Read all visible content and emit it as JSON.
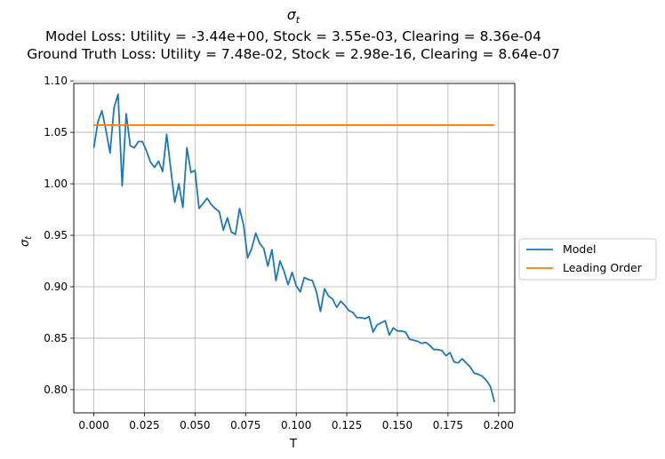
{
  "chart_data": {
    "type": "line",
    "title_symbol": "σ",
    "title_subscript": "t",
    "title_line2": "Model Loss: Utility = -3.44e+00, Stock = 3.55e-03, Clearing = 8.36e-04",
    "title_line3": "Ground Truth Loss: Utility = 7.48e-02, Stock = 2.98e-16, Clearing = 8.64e-07",
    "xlabel": "T",
    "ylabel_symbol": "σ",
    "ylabel_subscript": "t",
    "xlim": [
      -0.0099,
      0.208
    ],
    "ylim": [
      0.7775,
      1.0975
    ],
    "xticks": [
      0.0,
      0.025,
      0.05,
      0.075,
      0.1,
      0.125,
      0.15,
      0.175,
      0.2
    ],
    "xtick_labels": [
      "0.000",
      "0.025",
      "0.050",
      "0.075",
      "0.100",
      "0.125",
      "0.150",
      "0.175",
      "0.200"
    ],
    "yticks": [
      0.8,
      0.85,
      0.9,
      0.95,
      1.0,
      1.05,
      1.1
    ],
    "ytick_labels": [
      "0.80",
      "0.85",
      "0.90",
      "0.95",
      "1.00",
      "1.05",
      "1.10"
    ],
    "grid": true,
    "legend_position": "right-center",
    "series": [
      {
        "name": "Model",
        "color": "#1f77b4",
        "x": [
          0.0,
          0.002,
          0.004,
          0.006,
          0.008,
          0.01,
          0.012,
          0.014,
          0.016,
          0.018,
          0.02,
          0.022,
          0.024,
          0.026,
          0.028,
          0.03,
          0.032,
          0.034,
          0.036,
          0.038,
          0.04,
          0.042,
          0.044,
          0.046,
          0.048,
          0.05,
          0.052,
          0.054,
          0.056,
          0.058,
          0.06,
          0.062,
          0.064,
          0.066,
          0.068,
          0.07,
          0.072,
          0.074,
          0.076,
          0.078,
          0.08,
          0.082,
          0.084,
          0.086,
          0.088,
          0.09,
          0.092,
          0.094,
          0.096,
          0.098,
          0.1,
          0.102,
          0.104,
          0.106,
          0.108,
          0.11,
          0.112,
          0.114,
          0.116,
          0.118,
          0.12,
          0.122,
          0.124,
          0.126,
          0.128,
          0.13,
          0.132,
          0.134,
          0.136,
          0.138,
          0.14,
          0.142,
          0.144,
          0.146,
          0.148,
          0.15,
          0.152,
          0.154,
          0.156,
          0.158,
          0.16,
          0.162,
          0.164,
          0.166,
          0.168,
          0.17,
          0.172,
          0.174,
          0.176,
          0.178,
          0.18,
          0.182,
          0.184,
          0.186,
          0.188,
          0.19,
          0.192,
          0.194,
          0.196,
          0.198
        ],
        "y": [
          1.035,
          1.06,
          1.071,
          1.052,
          1.03,
          1.074,
          1.087,
          0.998,
          1.068,
          1.037,
          1.035,
          1.041,
          1.041,
          1.032,
          1.021,
          1.016,
          1.022,
          1.012,
          1.048,
          1.015,
          0.982,
          1.0,
          0.977,
          1.035,
          1.011,
          1.013,
          0.976,
          0.981,
          0.986,
          0.98,
          0.976,
          0.973,
          0.955,
          0.967,
          0.953,
          0.951,
          0.976,
          0.96,
          0.928,
          0.937,
          0.952,
          0.942,
          0.937,
          0.92,
          0.936,
          0.906,
          0.925,
          0.915,
          0.902,
          0.914,
          0.901,
          0.895,
          0.909,
          0.907,
          0.906,
          0.895,
          0.876,
          0.898,
          0.891,
          0.888,
          0.88,
          0.886,
          0.882,
          0.877,
          0.875,
          0.87,
          0.87,
          0.869,
          0.871,
          0.856,
          0.863,
          0.865,
          0.867,
          0.853,
          0.86,
          0.857,
          0.857,
          0.856,
          0.849,
          0.848,
          0.847,
          0.845,
          0.846,
          0.843,
          0.839,
          0.839,
          0.838,
          0.833,
          0.836,
          0.827,
          0.826,
          0.83,
          0.826,
          0.822,
          0.816,
          0.815,
          0.813,
          0.809,
          0.803,
          0.788
        ]
      },
      {
        "name": "Leading Order",
        "color": "#ff7f0e",
        "x": [
          0.0,
          0.198
        ],
        "y": [
          1.057,
          1.057
        ]
      }
    ]
  }
}
